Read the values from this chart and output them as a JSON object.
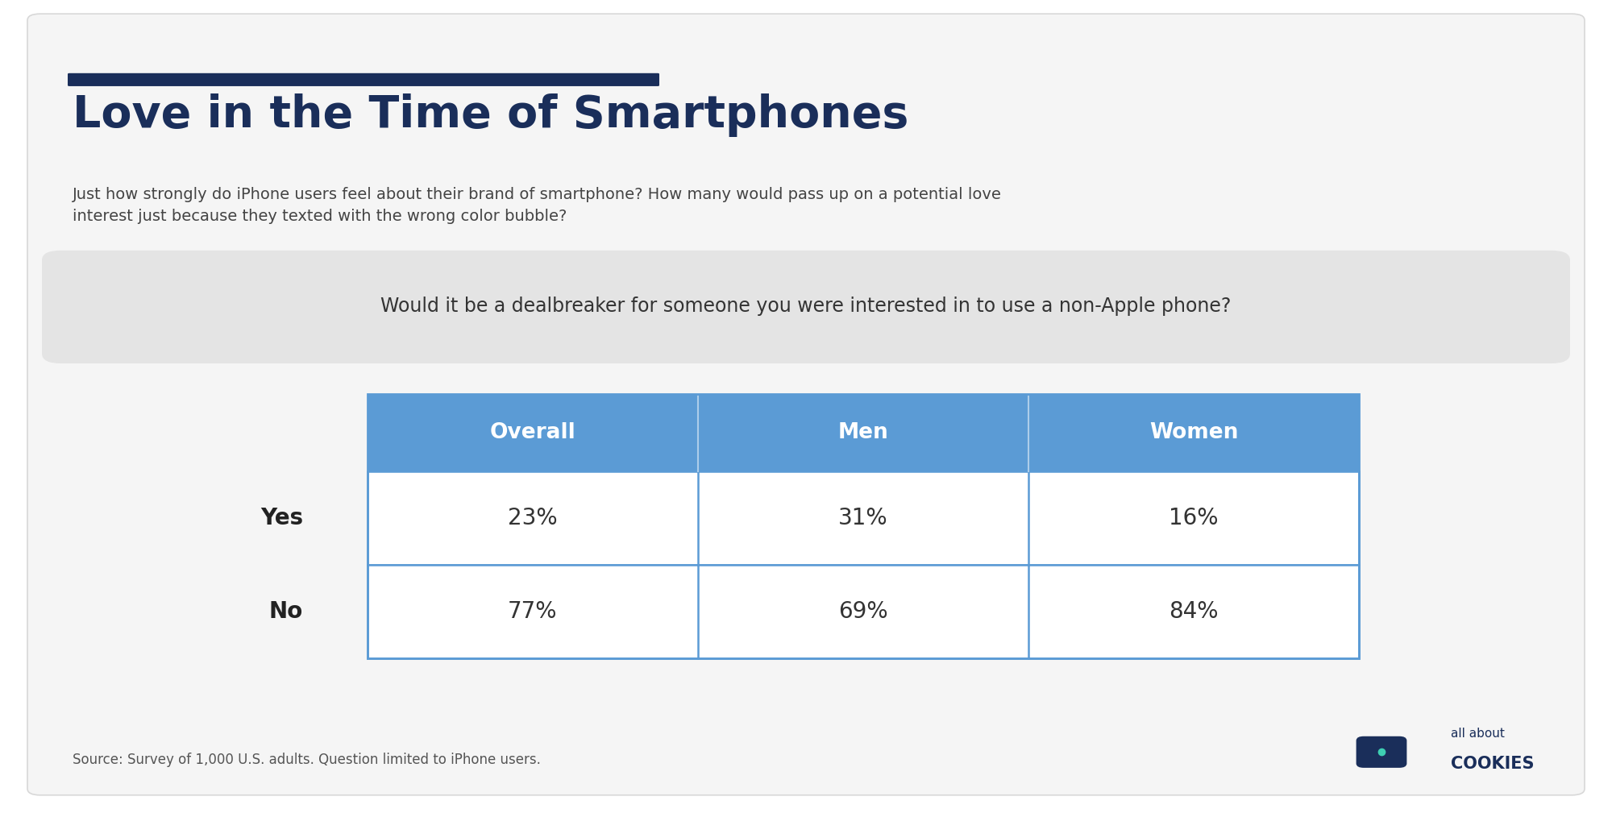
{
  "title": "Love in the Time of Smartphones",
  "subtitle": "Just how strongly do iPhone users feel about their brand of smartphone? How many would pass up on a potential love\ninterest just because they texted with the wrong color bubble?",
  "question": "Would it be a dealbreaker for someone you were interested in to use a non-Apple phone?",
  "table_headers": [
    "Overall",
    "Men",
    "Women"
  ],
  "row_labels": [
    "Yes",
    "No"
  ],
  "table_data": [
    [
      "23%",
      "31%",
      "16%"
    ],
    [
      "77%",
      "69%",
      "84%"
    ]
  ],
  "source_text": "Source: Survey of 1,000 U.S. adults. Question limited to iPhone users.",
  "background_color": "#ffffff",
  "card_color": "#f5f5f5",
  "header_bg_color": "#5b9bd5",
  "header_text_color": "#ffffff",
  "cell_bg_color": "#ffffff",
  "cell_text_color": "#333333",
  "row_label_color": "#222222",
  "title_color": "#1a2e5a",
  "subtitle_color": "#444444",
  "question_bg_color": "#e4e4e4",
  "question_text_color": "#333333",
  "top_bar_color": "#1a2e5a",
  "source_color": "#555555",
  "table_border_color": "#5b9bd5",
  "logo_color": "#1a2e5a"
}
